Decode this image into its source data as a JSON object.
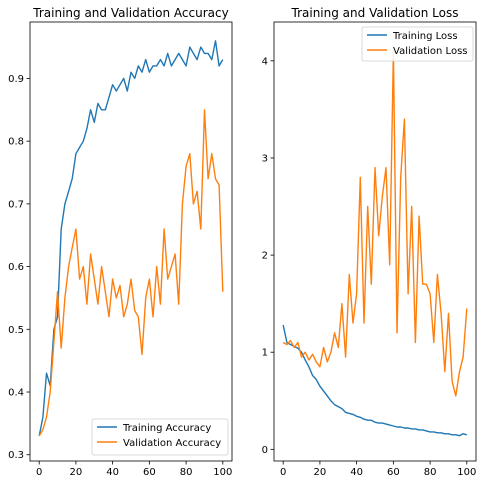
{
  "colors": {
    "training": "#1f77b4",
    "validation": "#ff7f0e",
    "axis": "#000000",
    "background": "#ffffff"
  },
  "chart_data": [
    {
      "type": "line",
      "title": "Training and Validation Accuracy",
      "xlabel": "",
      "ylabel": "",
      "xlim": [
        -5,
        105
      ],
      "ylim": [
        0.29,
        0.99
      ],
      "xticks": [
        0,
        20,
        40,
        60,
        80,
        100
      ],
      "yticks": [
        0.3,
        0.4,
        0.5,
        0.6,
        0.7,
        0.8,
        0.9
      ],
      "grid": false,
      "legend_position": "lower-right",
      "series": [
        {
          "name": "Training Accuracy",
          "color": "#1f77b4",
          "x": [
            0,
            2,
            4,
            6,
            8,
            10,
            12,
            14,
            16,
            18,
            20,
            22,
            24,
            26,
            28,
            30,
            32,
            34,
            36,
            38,
            40,
            42,
            44,
            46,
            48,
            50,
            52,
            54,
            56,
            58,
            60,
            62,
            64,
            66,
            68,
            70,
            72,
            74,
            76,
            78,
            80,
            82,
            84,
            86,
            88,
            90,
            92,
            94,
            96,
            98,
            100
          ],
          "y": [
            0.33,
            0.36,
            0.43,
            0.41,
            0.5,
            0.52,
            0.66,
            0.7,
            0.72,
            0.74,
            0.78,
            0.79,
            0.8,
            0.82,
            0.85,
            0.83,
            0.86,
            0.85,
            0.85,
            0.87,
            0.89,
            0.88,
            0.89,
            0.9,
            0.88,
            0.91,
            0.9,
            0.92,
            0.91,
            0.93,
            0.91,
            0.92,
            0.92,
            0.93,
            0.92,
            0.94,
            0.92,
            0.93,
            0.94,
            0.93,
            0.92,
            0.95,
            0.94,
            0.93,
            0.95,
            0.94,
            0.94,
            0.93,
            0.96,
            0.92,
            0.93
          ]
        },
        {
          "name": "Validation Accuracy",
          "color": "#ff7f0e",
          "x": [
            0,
            2,
            4,
            6,
            8,
            10,
            12,
            14,
            16,
            18,
            20,
            22,
            24,
            26,
            28,
            30,
            32,
            34,
            36,
            38,
            40,
            42,
            44,
            46,
            48,
            50,
            52,
            54,
            56,
            58,
            60,
            62,
            64,
            66,
            68,
            70,
            72,
            74,
            76,
            78,
            80,
            82,
            84,
            86,
            88,
            90,
            92,
            94,
            96,
            98,
            100
          ],
          "y": [
            0.33,
            0.34,
            0.36,
            0.4,
            0.48,
            0.56,
            0.47,
            0.55,
            0.6,
            0.63,
            0.66,
            0.58,
            0.6,
            0.54,
            0.62,
            0.58,
            0.54,
            0.6,
            0.56,
            0.52,
            0.58,
            0.55,
            0.57,
            0.52,
            0.54,
            0.58,
            0.53,
            0.52,
            0.46,
            0.55,
            0.58,
            0.52,
            0.6,
            0.54,
            0.66,
            0.58,
            0.6,
            0.62,
            0.54,
            0.7,
            0.76,
            0.78,
            0.7,
            0.72,
            0.66,
            0.85,
            0.74,
            0.78,
            0.74,
            0.73,
            0.56
          ]
        }
      ]
    },
    {
      "type": "line",
      "title": "Training and Validation Loss",
      "xlabel": "",
      "ylabel": "",
      "xlim": [
        -5,
        105
      ],
      "ylim": [
        -0.12,
        4.4
      ],
      "xticks": [
        0,
        20,
        40,
        60,
        80,
        100
      ],
      "yticks": [
        0,
        1,
        2,
        3,
        4
      ],
      "grid": false,
      "legend_position": "upper-right",
      "series": [
        {
          "name": "Training Loss",
          "color": "#1f77b4",
          "x": [
            0,
            2,
            4,
            6,
            8,
            10,
            12,
            14,
            16,
            18,
            20,
            22,
            24,
            26,
            28,
            30,
            32,
            34,
            36,
            38,
            40,
            42,
            44,
            46,
            48,
            50,
            52,
            54,
            56,
            58,
            60,
            62,
            64,
            66,
            68,
            70,
            72,
            74,
            76,
            78,
            80,
            82,
            84,
            86,
            88,
            90,
            92,
            94,
            96,
            98,
            100
          ],
          "y": [
            1.28,
            1.1,
            1.08,
            1.06,
            1.04,
            1.0,
            0.92,
            0.85,
            0.76,
            0.72,
            0.65,
            0.6,
            0.55,
            0.5,
            0.46,
            0.44,
            0.42,
            0.38,
            0.37,
            0.36,
            0.34,
            0.33,
            0.31,
            0.3,
            0.3,
            0.28,
            0.27,
            0.27,
            0.26,
            0.25,
            0.24,
            0.23,
            0.23,
            0.22,
            0.22,
            0.21,
            0.21,
            0.2,
            0.2,
            0.19,
            0.18,
            0.18,
            0.17,
            0.17,
            0.16,
            0.16,
            0.15,
            0.15,
            0.14,
            0.16,
            0.15
          ]
        },
        {
          "name": "Validation Loss",
          "color": "#ff7f0e",
          "x": [
            0,
            2,
            4,
            6,
            8,
            10,
            12,
            14,
            16,
            18,
            20,
            22,
            24,
            26,
            28,
            30,
            32,
            34,
            36,
            38,
            40,
            42,
            44,
            46,
            48,
            50,
            52,
            54,
            56,
            58,
            60,
            62,
            64,
            66,
            68,
            70,
            72,
            74,
            76,
            78,
            80,
            82,
            84,
            86,
            88,
            90,
            92,
            94,
            96,
            98,
            100
          ],
          "y": [
            1.1,
            1.08,
            1.12,
            1.05,
            1.1,
            0.95,
            1.0,
            0.92,
            0.98,
            0.9,
            0.85,
            1.05,
            0.9,
            1.0,
            1.2,
            1.05,
            1.5,
            0.95,
            1.8,
            1.3,
            1.6,
            2.8,
            1.3,
            2.5,
            1.7,
            2.9,
            2.2,
            2.6,
            2.9,
            1.9,
            4.1,
            1.2,
            2.8,
            3.4,
            1.6,
            2.5,
            1.1,
            2.4,
            1.7,
            1.7,
            1.6,
            1.1,
            1.8,
            1.4,
            0.8,
            1.4,
            0.7,
            0.55,
            0.8,
            0.95,
            1.45
          ]
        }
      ]
    }
  ]
}
